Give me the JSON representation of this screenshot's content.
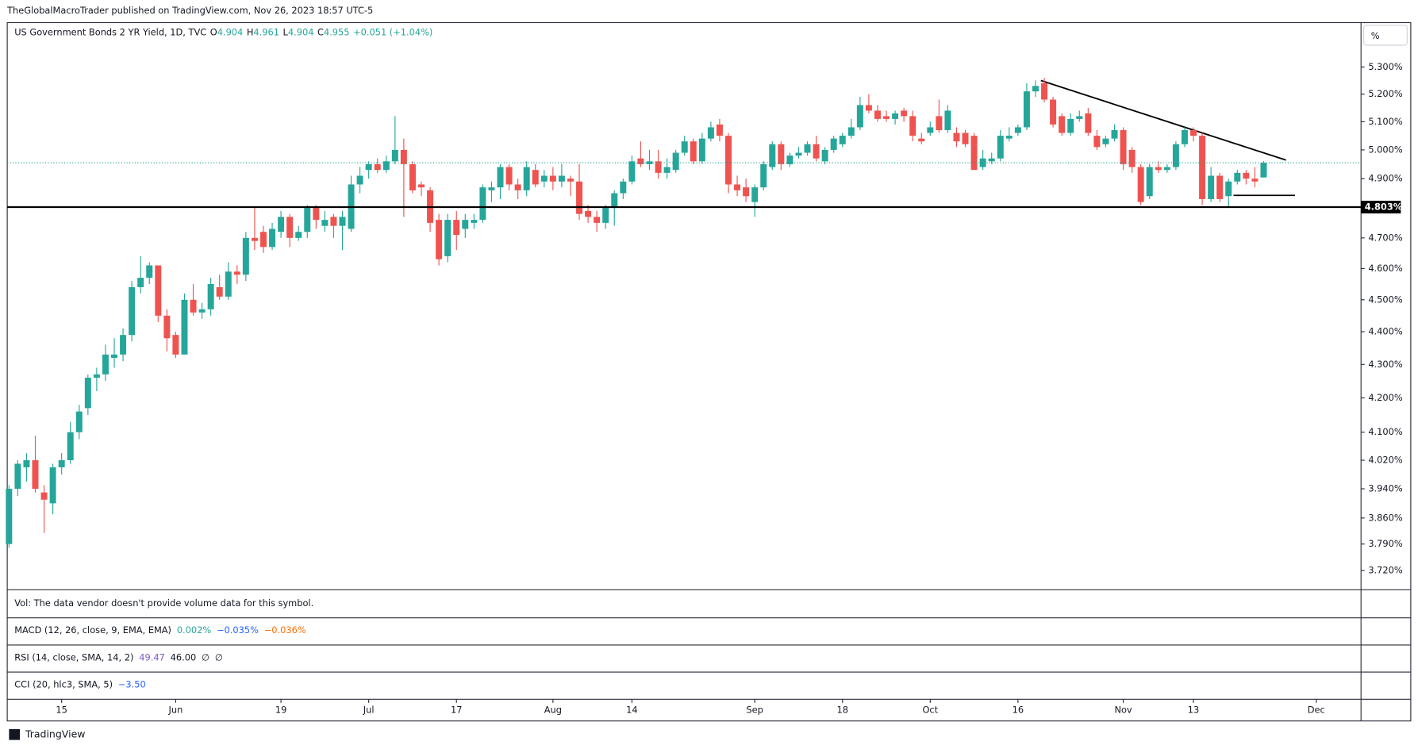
{
  "header": {
    "publisher": "TheGlobalMacroTrader published on TradingView.com, Nov 26, 2023 18:57 UTC-5"
  },
  "chart_data": {
    "type": "candlestick",
    "title": "US Government Bonds 2 YR Yield, 1D, TVC",
    "legend_values": [
      {
        "label": "O",
        "value": "4.904"
      },
      {
        "label": "H",
        "value": "4.961"
      },
      {
        "label": "L",
        "value": "4.904"
      },
      {
        "label": "C",
        "value": "4.955"
      }
    ],
    "change": "+0.051 (+1.04%)",
    "axis_unit": "%",
    "log_scale": true,
    "up_color": "#26a69a",
    "down_color": "#ef5350",
    "open": [
      3.79,
      3.94,
      4.0,
      4.02,
      3.93,
      3.9,
      4.0,
      4.02,
      4.1,
      4.17,
      4.26,
      4.27,
      4.32,
      4.33,
      4.39,
      4.54,
      4.57,
      4.61,
      4.45,
      4.39,
      4.33,
      4.5,
      4.46,
      4.47,
      4.54,
      4.51,
      4.59,
      4.58,
      4.7,
      4.72,
      4.67,
      4.72,
      4.77,
      4.7,
      4.72,
      4.8,
      4.74,
      4.77,
      4.74,
      4.73,
      4.88,
      4.93,
      4.95,
      4.93,
      4.96,
      5.0,
      4.95,
      4.88,
      4.86,
      4.76,
      4.64,
      4.76,
      4.73,
      4.75,
      4.76,
      4.86,
      4.87,
      4.94,
      4.88,
      4.86,
      4.93,
      4.89,
      4.91,
      4.89,
      4.9,
      4.89,
      4.79,
      4.77,
      4.75,
      4.8,
      4.85,
      4.89,
      4.97,
      4.95,
      4.96,
      4.92,
      4.93,
      4.99,
      5.03,
      4.96,
      5.04,
      5.09,
      5.05,
      4.88,
      4.87,
      4.82,
      4.87,
      4.94,
      5.02,
      4.95,
      4.98,
      4.99,
      5.02,
      4.96,
      5.0,
      5.02,
      5.05,
      5.08,
      5.16,
      5.14,
      5.12,
      5.11,
      5.14,
      5.12,
      5.04,
      5.06,
      5.12,
      5.07,
      5.06,
      5.06,
      5.05,
      4.94,
      4.96,
      4.97,
      5.04,
      5.06,
      5.08,
      5.21,
      5.24,
      5.18,
      5.12,
      5.06,
      5.11,
      5.13,
      5.05,
      5.02,
      5.04,
      5.07,
      5.0,
      4.94,
      4.84,
      4.94,
      4.93,
      4.94,
      5.02,
      5.07,
      5.05,
      4.83,
      4.91,
      4.84,
      4.89,
      4.92,
      4.9,
      4.904
    ],
    "high": [
      3.95,
      4.02,
      4.04,
      4.09,
      3.95,
      4.01,
      4.04,
      4.13,
      4.18,
      4.27,
      4.29,
      4.36,
      4.38,
      4.41,
      4.56,
      4.64,
      4.62,
      4.61,
      4.47,
      4.4,
      4.52,
      4.55,
      4.49,
      4.57,
      4.58,
      4.62,
      4.61,
      4.72,
      4.8,
      4.74,
      4.75,
      4.79,
      4.78,
      4.74,
      4.81,
      4.81,
      4.79,
      4.78,
      4.79,
      4.91,
      4.94,
      4.96,
      4.97,
      4.98,
      5.12,
      5.04,
      4.96,
      4.89,
      4.87,
      4.78,
      4.78,
      4.79,
      4.78,
      4.78,
      4.88,
      4.89,
      4.95,
      4.95,
      4.9,
      4.96,
      4.95,
      4.93,
      4.94,
      4.95,
      4.91,
      4.95,
      4.81,
      4.79,
      4.81,
      4.86,
      4.9,
      4.98,
      5.03,
      5.0,
      5.0,
      4.97,
      5.0,
      5.05,
      5.04,
      5.06,
      5.1,
      5.11,
      5.06,
      4.91,
      4.9,
      4.88,
      4.96,
      5.03,
      5.03,
      4.99,
      5.01,
      5.03,
      5.05,
      5.01,
      5.05,
      5.06,
      5.11,
      5.19,
      5.2,
      5.16,
      5.14,
      5.14,
      5.15,
      5.14,
      5.06,
      5.1,
      5.18,
      5.16,
      5.08,
      5.07,
      5.06,
      5.0,
      4.99,
      5.07,
      5.08,
      5.09,
      5.24,
      5.25,
      5.26,
      5.19,
      5.13,
      5.13,
      5.14,
      5.15,
      5.07,
      5.05,
      5.09,
      5.08,
      5.01,
      4.95,
      4.95,
      4.96,
      4.95,
      5.03,
      5.08,
      5.08,
      5.06,
      4.94,
      4.92,
      4.9,
      4.93,
      4.93,
      4.94,
      4.961
    ],
    "low": [
      3.78,
      3.92,
      3.96,
      3.93,
      3.82,
      3.87,
      3.98,
      4.01,
      4.08,
      4.15,
      4.22,
      4.25,
      4.29,
      4.31,
      4.37,
      4.52,
      4.55,
      4.43,
      4.34,
      4.32,
      4.33,
      4.45,
      4.44,
      4.45,
      4.5,
      4.5,
      4.55,
      4.56,
      4.66,
      4.65,
      4.66,
      4.7,
      4.67,
      4.69,
      4.7,
      4.73,
      4.72,
      4.7,
      4.66,
      4.72,
      4.85,
      4.9,
      4.92,
      4.92,
      4.95,
      4.77,
      4.85,
      4.84,
      4.72,
      4.61,
      4.62,
      4.66,
      4.7,
      4.73,
      4.75,
      4.82,
      4.83,
      4.86,
      4.83,
      4.84,
      4.87,
      4.87,
      4.86,
      4.87,
      4.84,
      4.76,
      4.75,
      4.72,
      4.73,
      4.74,
      4.83,
      4.88,
      4.94,
      4.93,
      4.9,
      4.9,
      4.92,
      4.98,
      4.95,
      4.95,
      5.03,
      5.03,
      4.85,
      4.84,
      4.82,
      4.77,
      4.86,
      4.93,
      4.93,
      4.94,
      4.97,
      4.98,
      4.96,
      4.95,
      4.99,
      5.01,
      5.04,
      5.07,
      5.13,
      5.1,
      5.1,
      5.09,
      5.1,
      5.03,
      5.02,
      5.05,
      5.06,
      5.06,
      5.01,
      5.01,
      4.93,
      4.93,
      4.95,
      4.96,
      5.03,
      5.05,
      5.07,
      5.19,
      5.17,
      5.08,
      5.05,
      5.05,
      5.1,
      5.05,
      5.0,
      5.01,
      5.03,
      4.93,
      4.92,
      4.81,
      4.83,
      4.92,
      4.92,
      4.93,
      5.01,
      5.03,
      4.81,
      4.82,
      4.82,
      4.8,
      4.88,
      4.88,
      4.87,
      4.904
    ],
    "close": [
      3.94,
      4.01,
      4.02,
      3.94,
      3.91,
      4.0,
      4.02,
      4.1,
      4.16,
      4.26,
      4.27,
      4.33,
      4.33,
      4.39,
      4.54,
      4.57,
      4.61,
      4.45,
      4.38,
      4.33,
      4.5,
      4.46,
      4.47,
      4.55,
      4.51,
      4.59,
      4.58,
      4.7,
      4.69,
      4.67,
      4.73,
      4.77,
      4.7,
      4.72,
      4.8,
      4.76,
      4.76,
      4.74,
      4.77,
      4.88,
      4.91,
      4.95,
      4.93,
      4.96,
      5.0,
      4.95,
      4.86,
      4.87,
      4.75,
      4.63,
      4.76,
      4.71,
      4.76,
      4.76,
      4.87,
      4.87,
      4.94,
      4.88,
      4.86,
      4.94,
      4.88,
      4.91,
      4.89,
      4.91,
      4.89,
      4.78,
      4.77,
      4.75,
      4.8,
      4.85,
      4.89,
      4.96,
      4.95,
      4.96,
      4.92,
      4.94,
      4.99,
      5.03,
      4.96,
      5.04,
      5.08,
      5.05,
      4.88,
      4.86,
      4.84,
      4.87,
      4.95,
      5.02,
      4.95,
      4.98,
      4.99,
      5.02,
      4.97,
      5.0,
      5.04,
      5.05,
      5.08,
      5.16,
      5.14,
      5.11,
      5.11,
      5.13,
      5.12,
      5.05,
      5.03,
      5.08,
      5.07,
      5.14,
      5.03,
      5.02,
      4.93,
      4.97,
      4.97,
      5.05,
      5.05,
      5.08,
      5.21,
      5.23,
      5.18,
      5.09,
      5.06,
      5.11,
      5.12,
      5.06,
      5.01,
      5.04,
      5.07,
      4.95,
      4.94,
      4.82,
      4.94,
      4.93,
      4.94,
      5.02,
      5.07,
      5.05,
      4.83,
      4.91,
      4.83,
      4.89,
      4.92,
      4.9,
      4.89,
      4.955
    ],
    "xlim": [
      -0.2,
      154.1
    ],
    "xticks": [
      {
        "value": 6,
        "label": "15"
      },
      {
        "value": 19,
        "label": "Jun"
      },
      {
        "value": 31,
        "label": "19"
      },
      {
        "value": 41,
        "label": "Jul"
      },
      {
        "value": 51,
        "label": "17"
      },
      {
        "value": 62,
        "label": "Aug"
      },
      {
        "value": 71,
        "label": "14"
      },
      {
        "value": 85,
        "label": "Sep"
      },
      {
        "value": 95,
        "label": "18"
      },
      {
        "value": 105,
        "label": "Oct"
      },
      {
        "value": 115,
        "label": "16"
      },
      {
        "value": 127,
        "label": "Nov"
      },
      {
        "value": 135,
        "label": "13"
      },
      {
        "value": 149,
        "label": "Dec"
      }
    ],
    "ylim": [
      3.67,
      5.468
    ],
    "yticks": [
      {
        "value": 5.3,
        "label": "5.300%"
      },
      {
        "value": 5.2,
        "label": "5.200%"
      },
      {
        "value": 5.1,
        "label": "5.100%"
      },
      {
        "value": 5.0,
        "label": "5.000%"
      },
      {
        "value": 4.9,
        "label": "4.900%"
      },
      {
        "value": 4.7,
        "label": "4.700%"
      },
      {
        "value": 4.6,
        "label": "4.600%"
      },
      {
        "value": 4.5,
        "label": "4.500%"
      },
      {
        "value": 4.4,
        "label": "4.400%"
      },
      {
        "value": 4.3,
        "label": "4.300%"
      },
      {
        "value": 4.2,
        "label": "4.200%"
      },
      {
        "value": 4.1,
        "label": "4.100%"
      },
      {
        "value": 4.02,
        "label": "4.020%"
      },
      {
        "value": 3.94,
        "label": "3.940%"
      },
      {
        "value": 3.86,
        "label": "3.860%"
      },
      {
        "value": 3.79,
        "label": "3.790%"
      },
      {
        "value": 3.72,
        "label": "3.720%"
      }
    ],
    "level": {
      "value": 4.803,
      "label": "4.803%"
    }
  },
  "panes": {
    "volume": "Vol: The data vendor doesn't provide volume data for this symbol.",
    "macd": {
      "name": "MACD (12, 26, close, 9, EMA, EMA)",
      "values": [
        {
          "text": "0.002%",
          "color": "#26a69a"
        },
        {
          "text": "−0.035%",
          "color": "#2962ff"
        },
        {
          "text": "−0.036%",
          "color": "#ff6d00"
        }
      ]
    },
    "rsi": {
      "name": "RSI (14, close, SMA, 14, 2)",
      "values": [
        {
          "text": "49.47",
          "color": "#7e57c2"
        },
        {
          "text": "46.00",
          "color": "#131722"
        },
        {
          "text": "∅",
          "color": "#131722"
        },
        {
          "text": "∅",
          "color": "#131722"
        }
      ]
    },
    "cci": {
      "name": "CCI (20, hlc3, SMA, 5)",
      "values": [
        {
          "text": "−3.50",
          "color": "#2962ff"
        }
      ]
    }
  },
  "footer": {
    "brand": "TradingView"
  }
}
